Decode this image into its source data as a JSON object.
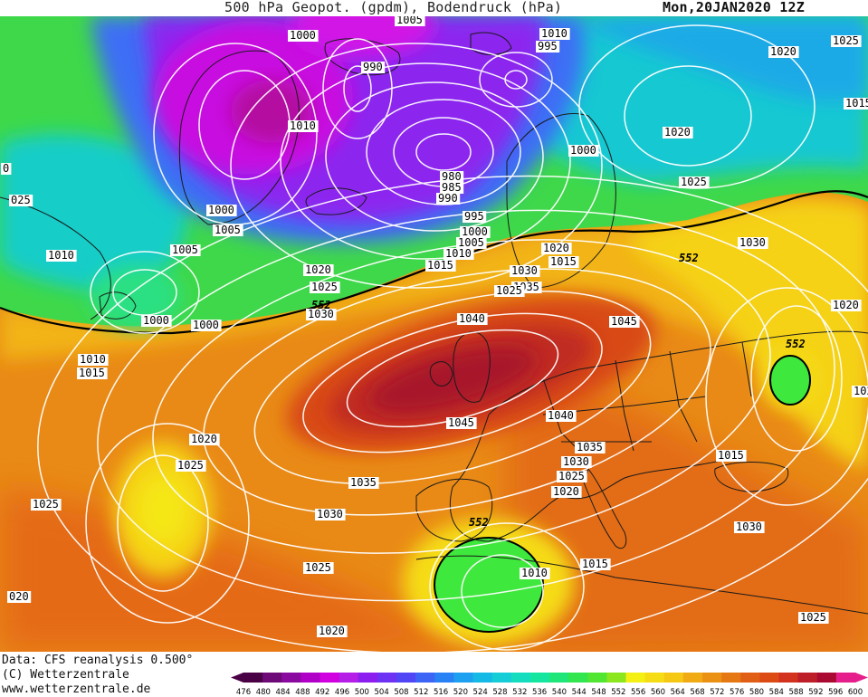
{
  "header": {
    "title": "500 hPa Geopot. (gpdm), Bodendruck (hPa)",
    "date": "Mon,20JAN2020 12Z"
  },
  "footer": {
    "line1": "Data: CFS reanalysis 0.500°",
    "line2": "(C) Wetterzentrale",
    "line3": "www.wetterzentrale.de"
  },
  "legend": {
    "ticks": [
      "476",
      "480",
      "484",
      "488",
      "492",
      "496",
      "500",
      "504",
      "508",
      "512",
      "516",
      "520",
      "524",
      "528",
      "532",
      "536",
      "540",
      "544",
      "548",
      "552",
      "556",
      "560",
      "564",
      "568",
      "572",
      "576",
      "580",
      "584",
      "588",
      "592",
      "596",
      "600"
    ],
    "colors": [
      "#4a0044",
      "#6e0a78",
      "#8a0aa0",
      "#b000c8",
      "#d000e0",
      "#b41ee6",
      "#8c1ef0",
      "#6e32f5",
      "#5046f5",
      "#3c64f5",
      "#2882f5",
      "#1ea0f0",
      "#14b9e6",
      "#14cdd7",
      "#14dcbe",
      "#14e6a0",
      "#1ee678",
      "#32e650",
      "#50e632",
      "#8ce61e",
      "#f5f014",
      "#f5dc14",
      "#f5c814",
      "#f0aa14",
      "#eb9114",
      "#e67814",
      "#e15f14",
      "#dc4b14",
      "#d2321e",
      "#be1e28",
      "#aa0a32",
      "#e61e8c"
    ]
  },
  "labels": {
    "isobars": [
      "1000",
      "1005",
      "1010",
      "995",
      "990",
      "1010",
      "1000",
      "1005",
      "1000",
      "025",
      "1010",
      "1005",
      "1000",
      "980",
      "985",
      "990",
      "995",
      "1000",
      "1005",
      "1010",
      "1015",
      "1020",
      "1025",
      "1030",
      "1000",
      "1010",
      "1015",
      "1020",
      "1025",
      "1035",
      "1030",
      "1025",
      "1020",
      "1015",
      "1025",
      "1020",
      "1015",
      "1020",
      "1025",
      "1030",
      "1040",
      "1045",
      "1045",
      "1040",
      "1035",
      "1030",
      "1025",
      "1020",
      "1015",
      "1010",
      "1030",
      "1025",
      "1035",
      "1030",
      "1025",
      "1020",
      "1025",
      "020",
      "1020",
      "1015",
      "0",
      "102"
    ],
    "geopotential": [
      "552",
      "552",
      "552",
      "552"
    ]
  }
}
